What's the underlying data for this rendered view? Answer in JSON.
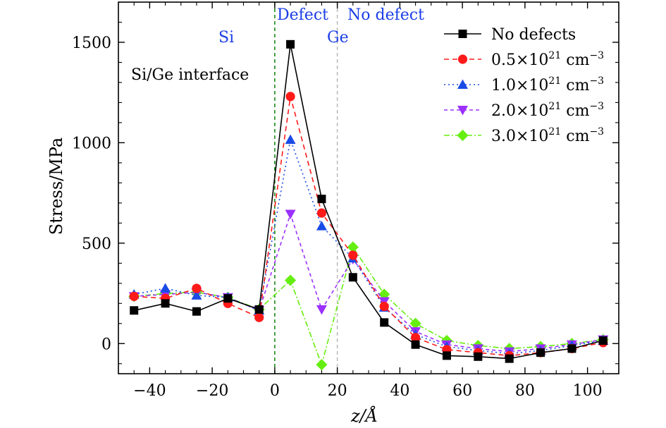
{
  "chart_data": {
    "type": "line",
    "xlabel": "z/Å",
    "ylabel": "Stress/MPa",
    "xlim": [
      -50,
      110
    ],
    "ylim": [
      -150,
      1700
    ],
    "x_ticks": [
      -40,
      -20,
      0,
      20,
      40,
      60,
      80,
      100
    ],
    "x_tick_labels": [
      "−40",
      "−20",
      "0",
      "20",
      "40",
      "60",
      "80",
      "100"
    ],
    "y_ticks": [
      0,
      500,
      1000,
      1500
    ],
    "y_tick_labels": [
      "0",
      "500",
      "1000",
      "1500"
    ],
    "x": [
      -45,
      -35,
      -25,
      -15,
      -5,
      5,
      15,
      25,
      35,
      45,
      55,
      65,
      75,
      85,
      95,
      105
    ],
    "series": [
      {
        "name": "No defects",
        "color": "#000000",
        "marker": "square",
        "dash": "",
        "values": [
          165,
          200,
          160,
          225,
          170,
          1490,
          720,
          330,
          105,
          -5,
          -60,
          -65,
          -75,
          -45,
          -25,
          15
        ]
      },
      {
        "name": "0.5×10²¹ cm⁻³",
        "color": "#ff1a1a",
        "marker": "circle",
        "dash": "7,5",
        "values": [
          235,
          225,
          275,
          200,
          130,
          1230,
          650,
          440,
          185,
          30,
          -30,
          -45,
          -60,
          -45,
          -25,
          5
        ]
      },
      {
        "name": "1.0×10²¹ cm⁻³",
        "color": "#1a4be6",
        "marker": "triangle-up",
        "dash": "2,4",
        "values": [
          245,
          275,
          240,
          230,
          165,
          1015,
          585,
          425,
          180,
          45,
          -15,
          -35,
          -50,
          -35,
          -10,
          15
        ]
      },
      {
        "name": "2.0×10²¹ cm⁻³",
        "color": "#9b30ff",
        "marker": "triangle-down",
        "dash": "5,4",
        "values": [
          235,
          245,
          255,
          230,
          165,
          645,
          170,
          420,
          210,
          60,
          -5,
          -25,
          -40,
          -25,
          -5,
          20
        ]
      },
      {
        "name": "3.0×10²¹ cm⁻³",
        "color": "#66ee11",
        "marker": "diamond",
        "dash": "8,3,2,3",
        "values": [
          235,
          250,
          255,
          230,
          170,
          315,
          -105,
          480,
          245,
          100,
          15,
          -10,
          -25,
          -15,
          0,
          20
        ]
      }
    ],
    "vlines": [
      {
        "x": 0,
        "color": "#1a8a1a",
        "dash": "5,4"
      },
      {
        "x": 20,
        "color": "#bbbbbb",
        "dash": "5,4"
      }
    ],
    "annotations": {
      "si": "Si",
      "defect": "Defect",
      "no_defect": "No defect",
      "ge": "Ge",
      "interface": "Si/Ge interface"
    },
    "legend_labels": [
      {
        "base": "No defects",
        "sup": "",
        "unit": "",
        "unit_sup": ""
      },
      {
        "base": "0.5×10",
        "sup": "21",
        "unit": " cm",
        "unit_sup": "−3"
      },
      {
        "base": "1.0×10",
        "sup": "21",
        "unit": " cm",
        "unit_sup": "−3"
      },
      {
        "base": "2.0×10",
        "sup": "21",
        "unit": " cm",
        "unit_sup": "−3"
      },
      {
        "base": "3.0×10",
        "sup": "21",
        "unit": " cm",
        "unit_sup": "−3"
      }
    ],
    "legend_position": "top-right",
    "grid": false
  }
}
